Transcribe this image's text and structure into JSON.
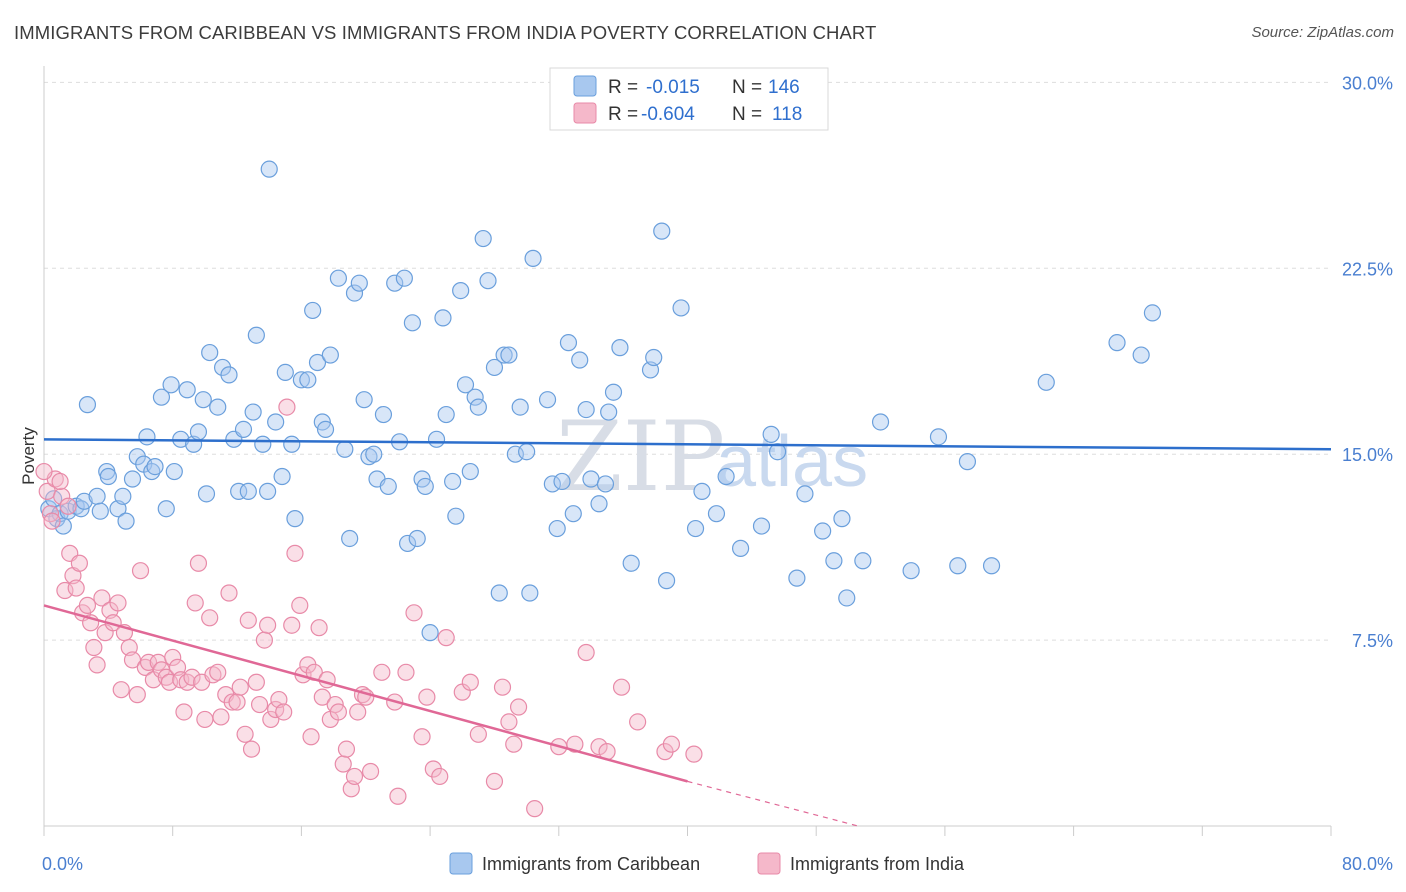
{
  "title": "IMMIGRANTS FROM CARIBBEAN VS IMMIGRANTS FROM INDIA POVERTY CORRELATION CHART",
  "source": "Source: ZipAtlas.com",
  "watermark": {
    "zip": "ZIP",
    "atlas": "atlas"
  },
  "colors": {
    "caribbean_fill": "#a8c8ef",
    "caribbean_stroke": "#6a9fdc",
    "caribbean_line": "#2d6fcc",
    "india_fill": "#f5b8ca",
    "india_stroke": "#e88aa8",
    "india_line": "#e06896",
    "grid": "#dddddd",
    "tick_label": "#4a7fd0"
  },
  "legend": {
    "r_label": "R =",
    "n_label": "N =",
    "items": [
      {
        "r": "-0.015",
        "n": "146"
      },
      {
        "r": "-0.604",
        "n": "118"
      }
    ]
  },
  "chart_data": {
    "type": "scatter",
    "title": "IMMIGRANTS FROM CARIBBEAN VS IMMIGRANTS FROM INDIA POVERTY CORRELATION CHART",
    "xlabel": "",
    "ylabel": "Poverty",
    "xlim": [
      0,
      80
    ],
    "ylim": [
      0,
      30.5
    ],
    "x_tick_labels": [
      "0.0%",
      "80.0%"
    ],
    "y_ticks": [
      7.5,
      15.0,
      22.5,
      30.0
    ],
    "y_tick_labels": [
      "7.5%",
      "15.0%",
      "22.5%",
      "30.0%"
    ],
    "grid": true,
    "legend_placement": "top-center",
    "series": [
      {
        "name": "Immigrants from Caribbean",
        "trend": {
          "x": [
            0,
            80
          ],
          "y": [
            15.6,
            15.2
          ]
        },
        "points": [
          [
            0.3,
            12.8
          ],
          [
            0.6,
            13.2
          ],
          [
            0.8,
            12.4
          ],
          [
            1.0,
            12.6
          ],
          [
            1.2,
            12.1
          ],
          [
            1.5,
            12.7
          ],
          [
            2.0,
            12.9
          ],
          [
            2.3,
            12.8
          ],
          [
            2.5,
            13.1
          ],
          [
            2.7,
            17.0
          ],
          [
            3.3,
            13.3
          ],
          [
            3.5,
            12.7
          ],
          [
            3.9,
            14.3
          ],
          [
            4.0,
            14.1
          ],
          [
            4.6,
            12.8
          ],
          [
            4.9,
            13.3
          ],
          [
            5.1,
            12.3
          ],
          [
            5.5,
            14.0
          ],
          [
            5.8,
            14.9
          ],
          [
            6.2,
            14.6
          ],
          [
            6.4,
            15.7
          ],
          [
            6.7,
            14.3
          ],
          [
            6.9,
            14.5
          ],
          [
            7.3,
            17.3
          ],
          [
            7.6,
            12.8
          ],
          [
            7.9,
            17.8
          ],
          [
            8.1,
            14.3
          ],
          [
            8.5,
            15.6
          ],
          [
            8.9,
            17.6
          ],
          [
            9.3,
            15.4
          ],
          [
            9.6,
            15.9
          ],
          [
            9.9,
            17.2
          ],
          [
            10.1,
            13.4
          ],
          [
            10.3,
            19.1
          ],
          [
            10.8,
            16.9
          ],
          [
            11.1,
            18.5
          ],
          [
            11.5,
            18.2
          ],
          [
            11.8,
            15.6
          ],
          [
            12.1,
            13.5
          ],
          [
            12.4,
            16.0
          ],
          [
            12.7,
            13.5
          ],
          [
            13.0,
            16.7
          ],
          [
            13.2,
            19.8
          ],
          [
            13.6,
            15.4
          ],
          [
            13.9,
            13.5
          ],
          [
            14.0,
            26.5
          ],
          [
            14.4,
            16.3
          ],
          [
            14.8,
            14.1
          ],
          [
            15.0,
            18.3
          ],
          [
            15.4,
            15.4
          ],
          [
            15.6,
            12.4
          ],
          [
            16.0,
            18.0
          ],
          [
            16.4,
            18.0
          ],
          [
            16.7,
            20.8
          ],
          [
            17.0,
            18.7
          ],
          [
            17.3,
            16.3
          ],
          [
            17.5,
            16.0
          ],
          [
            17.8,
            19.0
          ],
          [
            18.3,
            22.1
          ],
          [
            18.7,
            15.2
          ],
          [
            19.0,
            11.6
          ],
          [
            19.3,
            21.5
          ],
          [
            19.6,
            21.9
          ],
          [
            19.9,
            17.2
          ],
          [
            20.2,
            14.9
          ],
          [
            20.5,
            15.0
          ],
          [
            20.7,
            14.0
          ],
          [
            21.1,
            16.6
          ],
          [
            21.4,
            13.7
          ],
          [
            21.8,
            21.9
          ],
          [
            22.1,
            15.5
          ],
          [
            22.4,
            22.1
          ],
          [
            22.6,
            11.4
          ],
          [
            22.9,
            20.3
          ],
          [
            23.2,
            11.6
          ],
          [
            23.5,
            14.0
          ],
          [
            23.7,
            13.7
          ],
          [
            24.0,
            7.8
          ],
          [
            24.4,
            15.6
          ],
          [
            24.8,
            20.5
          ],
          [
            25.0,
            16.6
          ],
          [
            25.4,
            13.9
          ],
          [
            25.6,
            12.5
          ],
          [
            25.9,
            21.6
          ],
          [
            26.2,
            17.8
          ],
          [
            26.5,
            14.3
          ],
          [
            26.8,
            17.3
          ],
          [
            27.0,
            16.9
          ],
          [
            27.3,
            23.7
          ],
          [
            27.6,
            22.0
          ],
          [
            28.0,
            18.5
          ],
          [
            28.3,
            9.4
          ],
          [
            28.6,
            19.0
          ],
          [
            28.9,
            19.0
          ],
          [
            29.3,
            15.0
          ],
          [
            29.6,
            16.9
          ],
          [
            30.0,
            15.1
          ],
          [
            30.2,
            9.4
          ],
          [
            30.4,
            22.9
          ],
          [
            31.3,
            17.2
          ],
          [
            31.6,
            13.8
          ],
          [
            31.9,
            12.0
          ],
          [
            32.2,
            13.9
          ],
          [
            32.6,
            19.5
          ],
          [
            32.9,
            12.6
          ],
          [
            33.3,
            18.8
          ],
          [
            33.7,
            16.8
          ],
          [
            34.0,
            14.0
          ],
          [
            34.5,
            13.0
          ],
          [
            34.9,
            13.8
          ],
          [
            35.1,
            16.7
          ],
          [
            35.4,
            17.5
          ],
          [
            35.8,
            19.3
          ],
          [
            36.5,
            10.6
          ],
          [
            37.7,
            18.4
          ],
          [
            37.9,
            18.9
          ],
          [
            38.4,
            24.0
          ],
          [
            38.7,
            9.9
          ],
          [
            39.6,
            20.9
          ],
          [
            40.5,
            12.0
          ],
          [
            40.9,
            13.5
          ],
          [
            41.8,
            12.6
          ],
          [
            42.4,
            14.1
          ],
          [
            43.3,
            11.2
          ],
          [
            44.6,
            12.1
          ],
          [
            45.2,
            15.8
          ],
          [
            45.6,
            15.1
          ],
          [
            46.8,
            10.0
          ],
          [
            47.3,
            13.4
          ],
          [
            48.4,
            11.9
          ],
          [
            49.1,
            10.7
          ],
          [
            49.6,
            12.4
          ],
          [
            49.9,
            9.2
          ],
          [
            50.9,
            10.7
          ],
          [
            52.0,
            16.3
          ],
          [
            53.9,
            10.3
          ],
          [
            55.6,
            15.7
          ],
          [
            56.8,
            10.5
          ],
          [
            57.4,
            14.7
          ],
          [
            58.9,
            10.5
          ],
          [
            62.3,
            17.9
          ],
          [
            66.7,
            19.5
          ],
          [
            68.2,
            19.0
          ],
          [
            68.9,
            20.7
          ]
        ]
      },
      {
        "name": "Immigrants from India",
        "trend": {
          "x": [
            0,
            40
          ],
          "y": [
            8.9,
            1.8
          ]
        },
        "trend_ext": {
          "x": [
            40,
            50.6
          ],
          "y": [
            1.8,
            0.0
          ]
        },
        "points": [
          [
            0.2,
            13.5
          ],
          [
            0.4,
            12.6
          ],
          [
            0.7,
            14.0
          ],
          [
            1.1,
            13.3
          ],
          [
            1.3,
            9.5
          ],
          [
            1.6,
            11.0
          ],
          [
            1.8,
            10.1
          ],
          [
            2.0,
            9.6
          ],
          [
            2.2,
            10.6
          ],
          [
            2.4,
            8.6
          ],
          [
            2.7,
            8.9
          ],
          [
            2.9,
            8.2
          ],
          [
            3.1,
            7.2
          ],
          [
            3.3,
            6.5
          ],
          [
            3.6,
            9.2
          ],
          [
            3.8,
            7.8
          ],
          [
            4.1,
            8.7
          ],
          [
            4.3,
            8.2
          ],
          [
            4.6,
            9.0
          ],
          [
            4.8,
            5.5
          ],
          [
            5.0,
            7.8
          ],
          [
            5.3,
            7.2
          ],
          [
            5.5,
            6.7
          ],
          [
            5.8,
            5.3
          ],
          [
            6.0,
            10.3
          ],
          [
            6.3,
            6.4
          ],
          [
            6.5,
            6.6
          ],
          [
            6.8,
            5.9
          ],
          [
            7.1,
            6.6
          ],
          [
            7.3,
            6.3
          ],
          [
            7.6,
            6.0
          ],
          [
            7.8,
            5.8
          ],
          [
            8.0,
            6.8
          ],
          [
            8.3,
            6.4
          ],
          [
            8.5,
            5.9
          ],
          [
            8.7,
            4.6
          ],
          [
            8.9,
            5.8
          ],
          [
            9.2,
            6.0
          ],
          [
            9.4,
            9.0
          ],
          [
            9.6,
            10.6
          ],
          [
            9.8,
            5.8
          ],
          [
            10.0,
            4.3
          ],
          [
            10.3,
            8.4
          ],
          [
            10.5,
            6.1
          ],
          [
            10.8,
            6.2
          ],
          [
            11.0,
            4.4
          ],
          [
            11.3,
            5.3
          ],
          [
            11.5,
            9.4
          ],
          [
            11.7,
            5.0
          ],
          [
            12.0,
            5.0
          ],
          [
            12.2,
            5.6
          ],
          [
            12.5,
            3.7
          ],
          [
            12.7,
            8.3
          ],
          [
            12.9,
            3.1
          ],
          [
            13.2,
            5.8
          ],
          [
            13.4,
            4.9
          ],
          [
            13.7,
            7.5
          ],
          [
            13.9,
            8.1
          ],
          [
            14.1,
            4.3
          ],
          [
            14.4,
            4.7
          ],
          [
            14.6,
            5.1
          ],
          [
            14.9,
            4.6
          ],
          [
            15.1,
            16.9
          ],
          [
            15.4,
            8.1
          ],
          [
            15.6,
            11.0
          ],
          [
            15.9,
            8.9
          ],
          [
            16.1,
            6.1
          ],
          [
            16.4,
            6.5
          ],
          [
            16.6,
            3.6
          ],
          [
            16.8,
            6.2
          ],
          [
            17.1,
            8.0
          ],
          [
            17.3,
            5.2
          ],
          [
            17.6,
            5.9
          ],
          [
            17.8,
            4.3
          ],
          [
            18.1,
            4.9
          ],
          [
            18.3,
            4.6
          ],
          [
            18.6,
            2.5
          ],
          [
            18.8,
            3.1
          ],
          [
            19.1,
            1.5
          ],
          [
            19.3,
            2.0
          ],
          [
            19.5,
            4.6
          ],
          [
            19.8,
            5.3
          ],
          [
            20.0,
            5.2
          ],
          [
            20.3,
            2.2
          ],
          [
            21.0,
            6.2
          ],
          [
            21.8,
            5.0
          ],
          [
            22.0,
            1.2
          ],
          [
            22.5,
            6.2
          ],
          [
            23.0,
            8.6
          ],
          [
            23.5,
            3.6
          ],
          [
            23.8,
            5.2
          ],
          [
            24.2,
            2.3
          ],
          [
            24.6,
            2.0
          ],
          [
            25.0,
            7.6
          ],
          [
            26.0,
            5.4
          ],
          [
            26.5,
            5.8
          ],
          [
            27.0,
            3.7
          ],
          [
            28.0,
            1.8
          ],
          [
            28.5,
            5.6
          ],
          [
            28.9,
            4.2
          ],
          [
            29.2,
            3.3
          ],
          [
            29.5,
            4.8
          ],
          [
            30.5,
            0.7
          ],
          [
            32.0,
            3.2
          ],
          [
            33.0,
            3.3
          ],
          [
            33.7,
            7.0
          ],
          [
            34.5,
            3.2
          ],
          [
            35.0,
            3.0
          ],
          [
            35.9,
            5.6
          ],
          [
            36.9,
            4.2
          ],
          [
            38.6,
            3.0
          ],
          [
            39.0,
            3.3
          ],
          [
            40.4,
            2.9
          ],
          [
            1.0,
            13.9
          ],
          [
            0.5,
            12.3
          ],
          [
            1.5,
            12.9
          ],
          [
            0.0,
            14.3
          ]
        ]
      }
    ]
  }
}
